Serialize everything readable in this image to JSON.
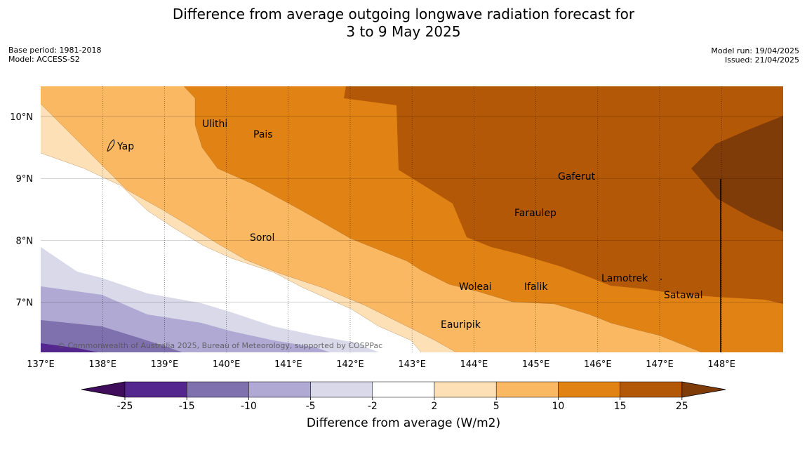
{
  "title": {
    "line1": "Difference from average outgoing longwave radiation forecast for",
    "line2": "3 to 9 May 2025"
  },
  "meta_left": {
    "base_period": "Base period: 1981-2018",
    "model": "Model: ACCESS-S2"
  },
  "meta_right": {
    "model_run": "Model run: 19/04/2025",
    "issued": "Issued: 21/04/2025"
  },
  "map": {
    "lon_labels": [
      "137°E",
      "138°E",
      "139°E",
      "140°E",
      "141°E",
      "142°E",
      "143°E",
      "144°E",
      "145°E",
      "146°E",
      "147°E",
      "148°E"
    ],
    "lat_labels": [
      "10°N",
      "9°N",
      "8°N",
      "7°N"
    ],
    "copyright": "© Commonwealth of Australia 2025, Bureau of Meteorology, supported by COSPPac",
    "islands": [
      {
        "name": "Yap"
      },
      {
        "name": "Ulithi"
      },
      {
        "name": "Pais"
      },
      {
        "name": "Gaferut"
      },
      {
        "name": "Faraulep"
      },
      {
        "name": "Sorol"
      },
      {
        "name": "Lamotrek"
      },
      {
        "name": "Woleai"
      },
      {
        "name": "Ifalik"
      },
      {
        "name": "Satawal"
      },
      {
        "name": "Eauripik"
      }
    ]
  },
  "colorbar": {
    "title": "Difference from average (W/m2)",
    "ticks": [
      "-25",
      "-15",
      "-10",
      "-5",
      "-2",
      "2",
      "5",
      "10",
      "15",
      "25"
    ],
    "colors": [
      "#3f0d5c",
      "#54278f",
      "#7f70ae",
      "#b0a9d3",
      "#d9d9ea",
      "#ffffff",
      "#fde0b6",
      "#fbb863",
      "#e08214",
      "#b35806",
      "#7f3b08"
    ]
  }
}
